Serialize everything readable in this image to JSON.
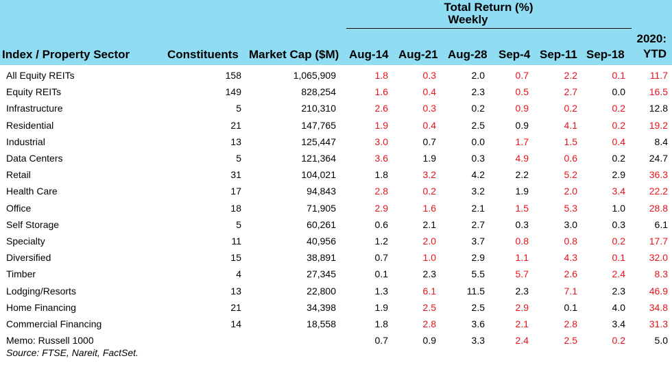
{
  "header": {
    "group_title": "Total Return (%)",
    "group_subtitle": "Weekly",
    "index_label": "Index / Property Sector",
    "constituents_label": "Constituents",
    "market_cap_label": "Market Cap ($M)",
    "weeks": [
      "Aug-14",
      "Aug-21",
      "Aug-28",
      "Sep-4",
      "Sep-11",
      "Sep-18"
    ],
    "ytd_label_1": "2020:",
    "ytd_label_2": "YTD"
  },
  "colors": {
    "header_band": "#8fdcf3",
    "negative": "#e8121a",
    "positive": "#000000"
  },
  "rows": [
    {
      "name": "All Equity REITs",
      "constituents": "158",
      "market_cap": "1,065,909",
      "values": [
        "1.8",
        "0.3",
        "2.0",
        "0.7",
        "2.2",
        "0.1",
        "11.7"
      ],
      "negative": [
        true,
        true,
        false,
        true,
        true,
        true,
        true
      ]
    },
    {
      "name": "Equity REITs",
      "constituents": "149",
      "market_cap": "828,254",
      "values": [
        "1.6",
        "0.4",
        "2.3",
        "0.5",
        "2.7",
        "0.0",
        "16.5"
      ],
      "negative": [
        true,
        true,
        false,
        true,
        true,
        false,
        true
      ]
    },
    {
      "name": "Infrastructure",
      "constituents": "5",
      "market_cap": "210,310",
      "values": [
        "2.6",
        "0.3",
        "0.2",
        "0.9",
        "0.2",
        "0.2",
        "12.8"
      ],
      "negative": [
        true,
        true,
        false,
        true,
        true,
        true,
        false
      ]
    },
    {
      "name": "Residential",
      "constituents": "21",
      "market_cap": "147,765",
      "values": [
        "1.9",
        "0.4",
        "2.5",
        "0.9",
        "4.1",
        "0.2",
        "19.2"
      ],
      "negative": [
        true,
        true,
        false,
        false,
        true,
        true,
        true
      ]
    },
    {
      "name": "Industrial",
      "constituents": "13",
      "market_cap": "125,447",
      "values": [
        "3.0",
        "0.7",
        "0.0",
        "1.7",
        "1.5",
        "0.4",
        "8.4"
      ],
      "negative": [
        true,
        false,
        false,
        true,
        true,
        true,
        false
      ]
    },
    {
      "name": "Data Centers",
      "constituents": "5",
      "market_cap": "121,364",
      "values": [
        "3.6",
        "1.9",
        "0.3",
        "4.9",
        "0.6",
        "0.2",
        "24.7"
      ],
      "negative": [
        true,
        false,
        false,
        true,
        true,
        false,
        false
      ]
    },
    {
      "name": "Retail",
      "constituents": "31",
      "market_cap": "104,021",
      "values": [
        "1.8",
        "3.2",
        "4.2",
        "2.2",
        "5.2",
        "2.9",
        "36.3"
      ],
      "negative": [
        false,
        true,
        false,
        false,
        true,
        false,
        true
      ]
    },
    {
      "name": "Health Care",
      "constituents": "17",
      "market_cap": "94,843",
      "values": [
        "2.8",
        "0.2",
        "3.2",
        "1.9",
        "2.0",
        "3.4",
        "22.2"
      ],
      "negative": [
        true,
        true,
        false,
        false,
        true,
        true,
        true
      ]
    },
    {
      "name": "Office",
      "constituents": "18",
      "market_cap": "71,905",
      "values": [
        "2.9",
        "1.6",
        "2.1",
        "1.5",
        "5.3",
        "1.0",
        "28.8"
      ],
      "negative": [
        true,
        true,
        false,
        true,
        true,
        false,
        true
      ]
    },
    {
      "name": "Self Storage",
      "constituents": "5",
      "market_cap": "60,261",
      "values": [
        "0.6",
        "2.1",
        "2.7",
        "0.3",
        "3.0",
        "0.3",
        "6.1"
      ],
      "negative": [
        false,
        false,
        false,
        false,
        false,
        false,
        false
      ]
    },
    {
      "name": "Specialty",
      "constituents": "11",
      "market_cap": "40,956",
      "values": [
        "1.2",
        "2.0",
        "3.7",
        "0.8",
        "0.8",
        "0.2",
        "17.7"
      ],
      "negative": [
        false,
        true,
        false,
        true,
        true,
        true,
        true
      ]
    },
    {
      "name": "Diversified",
      "constituents": "15",
      "market_cap": "38,891",
      "values": [
        "0.7",
        "1.0",
        "2.9",
        "1.1",
        "4.3",
        "0.1",
        "32.0"
      ],
      "negative": [
        false,
        true,
        false,
        true,
        true,
        true,
        true
      ]
    },
    {
      "name": "Timber",
      "constituents": "4",
      "market_cap": "27,345",
      "values": [
        "0.1",
        "2.3",
        "5.5",
        "5.7",
        "2.6",
        "2.4",
        "8.3"
      ],
      "negative": [
        false,
        false,
        false,
        true,
        true,
        true,
        true
      ]
    },
    {
      "name": "Lodging/Resorts",
      "constituents": "13",
      "market_cap": "22,800",
      "values": [
        "1.3",
        "6.1",
        "11.5",
        "2.3",
        "7.1",
        "2.3",
        "46.9"
      ],
      "negative": [
        false,
        true,
        false,
        false,
        true,
        false,
        true
      ]
    },
    {
      "name": "Home Financing",
      "constituents": "21",
      "market_cap": "34,398",
      "values": [
        "1.9",
        "2.5",
        "2.5",
        "2.9",
        "0.1",
        "4.0",
        "34.8"
      ],
      "negative": [
        false,
        true,
        false,
        true,
        false,
        false,
        true
      ]
    },
    {
      "name": "Commercial Financing",
      "constituents": "14",
      "market_cap": "18,558",
      "values": [
        "1.8",
        "2.8",
        "3.6",
        "2.1",
        "2.8",
        "3.4",
        "31.3"
      ],
      "negative": [
        false,
        true,
        false,
        true,
        true,
        false,
        true
      ]
    },
    {
      "name": "Memo: Russell 1000",
      "constituents": "",
      "market_cap": "",
      "values": [
        "0.7",
        "0.9",
        "3.3",
        "2.4",
        "2.5",
        "0.2",
        "5.0"
      ],
      "negative": [
        false,
        false,
        false,
        true,
        true,
        true,
        false
      ]
    }
  ],
  "source": "Source: FTSE, Nareit, FactSet."
}
